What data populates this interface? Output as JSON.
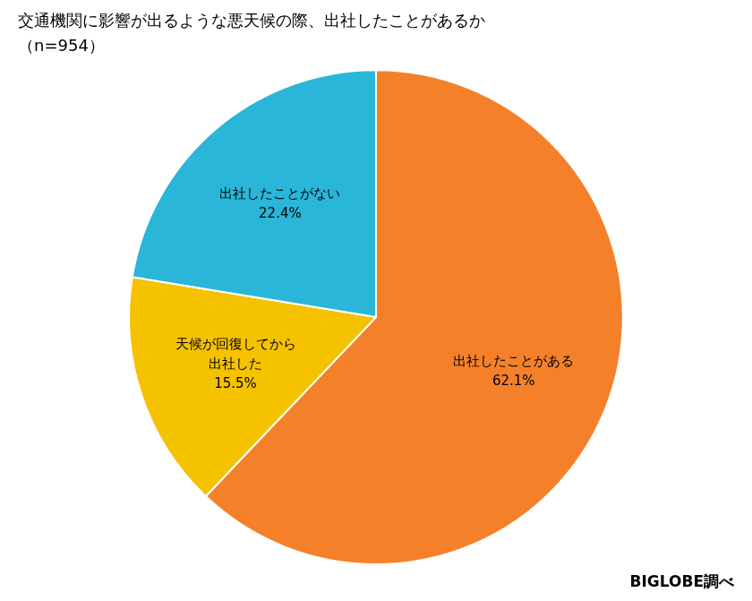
{
  "chart_data": {
    "type": "pie",
    "title": "交通機関に影響が出るような悪天候の際、出社したことがあるか",
    "subtitle": "（n=954）",
    "categories": [
      "出社したことがある",
      "天候が回復してから\n出社した",
      "出社したことがない"
    ],
    "values": [
      62.1,
      15.5,
      22.4
    ],
    "value_labels": [
      "62.1%",
      "15.5%",
      "22.4%"
    ],
    "colors": [
      "#F4812A",
      "#F5C200",
      "#29B6D8"
    ],
    "data_labels": true,
    "legend": false,
    "annotations": [
      "BIGLOBE調べ"
    ]
  }
}
